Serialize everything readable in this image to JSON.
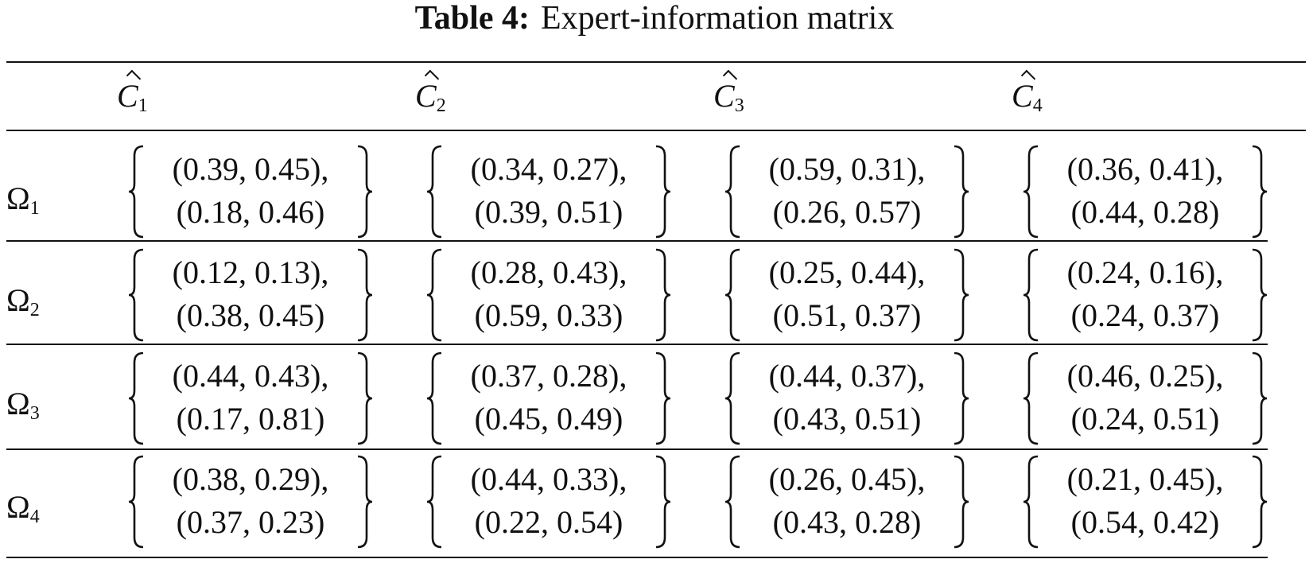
{
  "caption": {
    "label": "Table 4:",
    "title": "Expert-information matrix"
  },
  "columns": [
    {
      "letter": "C",
      "sub": "1"
    },
    {
      "letter": "C",
      "sub": "2"
    },
    {
      "letter": "C",
      "sub": "3"
    },
    {
      "letter": "C",
      "sub": "4"
    }
  ],
  "rows": [
    {
      "letter": "Ω",
      "sub": "1",
      "cells": [
        {
          "first": "(0.39, 0.45),",
          "second": "(0.18, 0.46)"
        },
        {
          "first": "(0.34, 0.27),",
          "second": "(0.39, 0.51)"
        },
        {
          "first": "(0.59, 0.31),",
          "second": "(0.26, 0.57)"
        },
        {
          "first": "(0.36, 0.41),",
          "second": "(0.44, 0.28)"
        }
      ]
    },
    {
      "letter": "Ω",
      "sub": "2",
      "cells": [
        {
          "first": "(0.12, 0.13),",
          "second": "(0.38, 0.45)"
        },
        {
          "first": "(0.28, 0.43),",
          "second": "(0.59, 0.33)"
        },
        {
          "first": "(0.25, 0.44),",
          "second": "(0.51, 0.37)"
        },
        {
          "first": "(0.24, 0.16),",
          "second": "(0.24, 0.37)"
        }
      ]
    },
    {
      "letter": "Ω",
      "sub": "3",
      "cells": [
        {
          "first": "(0.44, 0.43),",
          "second": "(0.17, 0.81)"
        },
        {
          "first": "(0.37, 0.28),",
          "second": "(0.45, 0.49)"
        },
        {
          "first": "(0.44, 0.37),",
          "second": "(0.43, 0.51)"
        },
        {
          "first": "(0.46, 0.25),",
          "second": "(0.24, 0.51)"
        }
      ]
    },
    {
      "letter": "Ω",
      "sub": "4",
      "cells": [
        {
          "first": "(0.38, 0.29),",
          "second": "(0.37, 0.23)"
        },
        {
          "first": "(0.44, 0.33),",
          "second": "(0.22, 0.54)"
        },
        {
          "first": "(0.26, 0.45),",
          "second": "(0.43, 0.28)"
        },
        {
          "first": "(0.21, 0.45),",
          "second": "(0.54, 0.42)"
        }
      ]
    }
  ]
}
